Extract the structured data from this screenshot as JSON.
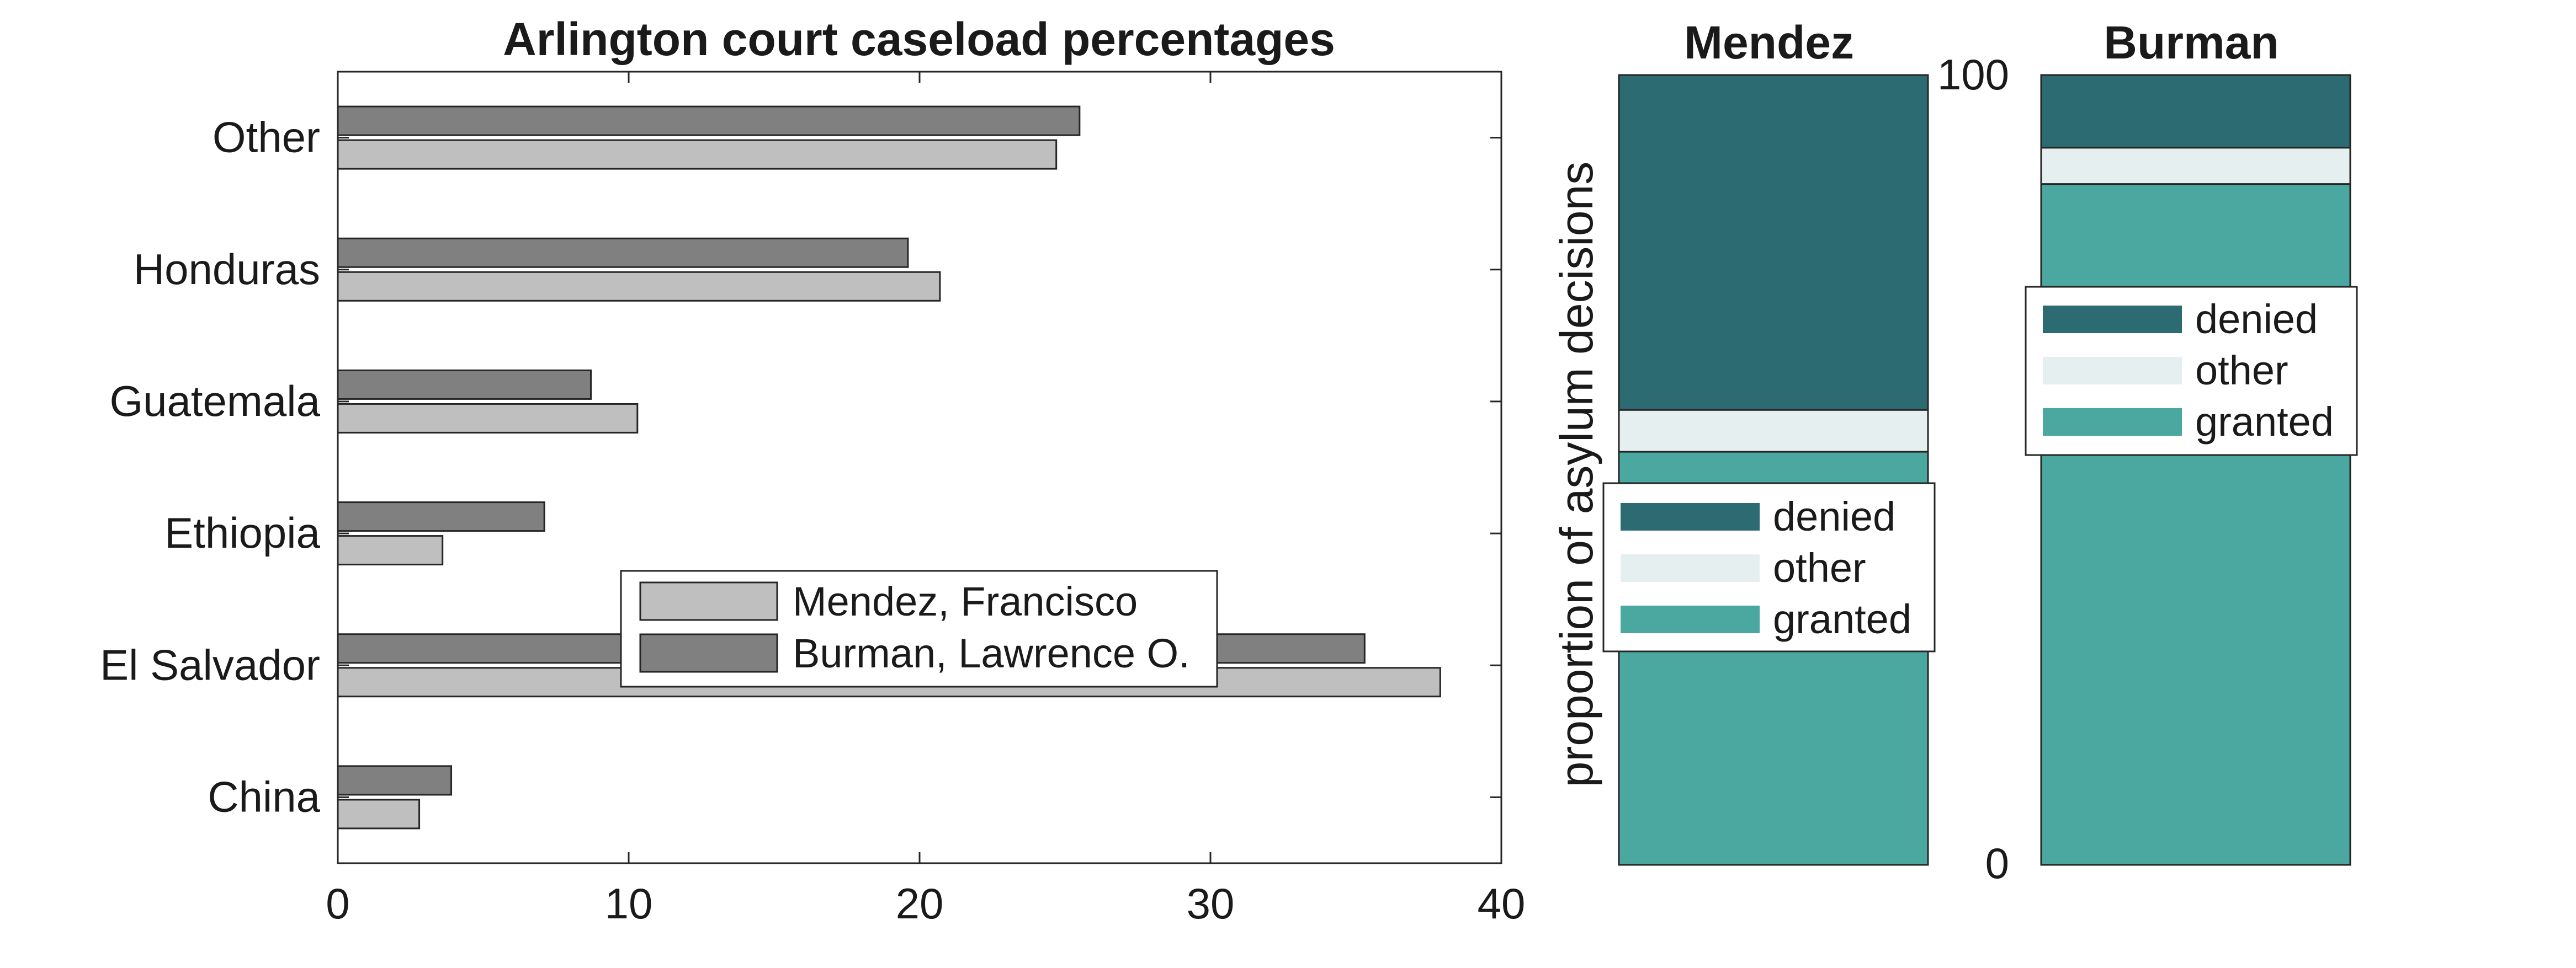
{
  "chart_data": [
    {
      "type": "bar",
      "orientation": "horizontal",
      "title": "Arlington court caseload percentages",
      "xlabel": "",
      "ylabel": "",
      "categories": [
        "Other",
        "Honduras",
        "Guatemala",
        "Ethiopia",
        "El Salvador",
        "China"
      ],
      "series": [
        {
          "name": "Burman, Lawrence O.",
          "color": "#808080",
          "values": [
            25.5,
            19.6,
            8.7,
            7.1,
            35.3,
            3.9
          ]
        },
        {
          "name": "Mendez, Francisco",
          "color": "#bfbfbf",
          "values": [
            24.7,
            20.7,
            10.3,
            3.6,
            37.9,
            2.8
          ]
        }
      ],
      "xlim": [
        0,
        40
      ],
      "xticks": [
        "0",
        "10",
        "20",
        "30",
        "40"
      ],
      "legend": {
        "placement": "inside-lower-center",
        "entries": [
          "Mendez, Francisco",
          "Burman, Lawrence O."
        ]
      }
    },
    {
      "type": "bar",
      "stacked": true,
      "title": "Mendez",
      "ylabel": "proportion of asylum decisions",
      "ylim": [
        0,
        100
      ],
      "segments": [
        {
          "name": "granted",
          "color": "#4aa8a0",
          "value": 52.3
        },
        {
          "name": "other",
          "color": "#e6eff0",
          "value": 5.3
        },
        {
          "name": "denied",
          "color": "#2d6b72",
          "value": 42.4
        }
      ],
      "legend": {
        "placement": "left-middle",
        "entries": [
          "denied",
          "other",
          "granted"
        ]
      }
    },
    {
      "type": "bar",
      "stacked": true,
      "title": "Burman",
      "ylabel": "",
      "ylim": [
        0,
        100
      ],
      "yticks": [
        "0",
        "100"
      ],
      "segments": [
        {
          "name": "granted",
          "color": "#4aa8a0",
          "value": 86.2
        },
        {
          "name": "other",
          "color": "#e6eff0",
          "value": 4.6
        },
        {
          "name": "denied",
          "color": "#2d6b72",
          "value": 9.2
        }
      ],
      "legend": {
        "placement": "upper-middle",
        "entries": [
          "denied",
          "other",
          "granted"
        ]
      }
    }
  ]
}
